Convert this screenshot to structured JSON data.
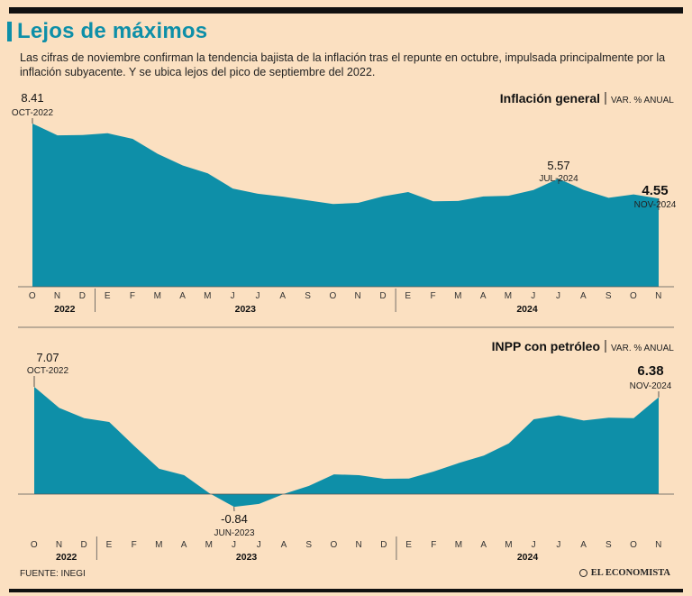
{
  "header": {
    "title": "Lejos de máximos",
    "subtitle": "Las cifras de noviembre confirman la tendencia bajista de la inflación tras el repunte en octubre, impulsada principalmente por la inflación subyacente. Y se ubica lejos del pico de septiembre del 2022."
  },
  "footer": {
    "source": "FUENTE: INEGI",
    "logo": "EL ECONOMISTA"
  },
  "colors": {
    "area": "#0e8fa8",
    "background": "#fbe0c1",
    "axis": "#555555"
  },
  "chart_data": [
    {
      "type": "area",
      "title": "Inflación general",
      "unit": "VAR. % ANUAL",
      "month_labels": [
        "O",
        "N",
        "D",
        "E",
        "F",
        "M",
        "A",
        "M",
        "J",
        "J",
        "A",
        "S",
        "O",
        "N",
        "D",
        "E",
        "F",
        "M",
        "A",
        "M",
        "J",
        "J",
        "A",
        "S",
        "O",
        "N"
      ],
      "year_labels": [
        "2022",
        "2023",
        "2024"
      ],
      "values": [
        8.41,
        7.8,
        7.82,
        7.91,
        7.62,
        6.85,
        6.25,
        5.84,
        5.06,
        4.79,
        4.64,
        4.45,
        4.26,
        4.32,
        4.66,
        4.88,
        4.4,
        4.42,
        4.65,
        4.69,
        4.98,
        5.57,
        4.99,
        4.58,
        4.76,
        4.55
      ],
      "annotations": [
        {
          "index": 0,
          "value": "8.41",
          "date": "OCT-2022"
        },
        {
          "index": 21,
          "value": "5.57",
          "date": "JUL-2024"
        },
        {
          "index": 25,
          "value": "4.55",
          "date": "NOV-2024"
        }
      ],
      "ylim": [
        0,
        8.41
      ]
    },
    {
      "type": "area",
      "title": "INPP con petróleo",
      "unit": "VAR. % ANUAL",
      "month_labels": [
        "O",
        "N",
        "D",
        "E",
        "F",
        "M",
        "A",
        "M",
        "J",
        "J",
        "A",
        "S",
        "O",
        "N",
        "D",
        "E",
        "F",
        "M",
        "A",
        "M",
        "J",
        "J",
        "A",
        "S",
        "O",
        "N"
      ],
      "year_labels": [
        "2022",
        "2023",
        "2024"
      ],
      "values": [
        7.07,
        5.68,
        5.01,
        4.75,
        3.18,
        1.67,
        1.25,
        0.07,
        -0.84,
        -0.65,
        0.02,
        0.54,
        1.3,
        1.25,
        1.01,
        1.03,
        1.49,
        2.05,
        2.54,
        3.34,
        4.93,
        5.19,
        4.85,
        5.03,
        5.01,
        6.38
      ],
      "annotations": [
        {
          "index": 0,
          "value": "7.07",
          "date": "OCT-2022"
        },
        {
          "index": 8,
          "value": "-0.84",
          "date": "JUN-2023"
        },
        {
          "index": 25,
          "value": "6.38",
          "date": "NOV-2024"
        }
      ],
      "ylim": [
        -0.84,
        7.07
      ]
    }
  ]
}
